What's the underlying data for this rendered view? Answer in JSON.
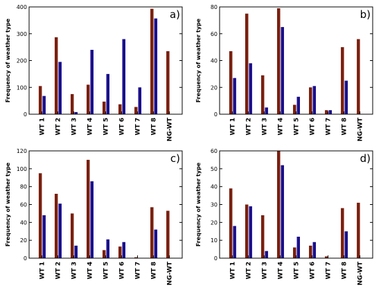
{
  "colors": {
    "series1": "#7a1f0e",
    "series2": "#1a0f8c",
    "axis": "#000000"
  },
  "chart_data": [
    {
      "type": "bar",
      "panel_label": "a)",
      "ylabel": "Frequency of weather type",
      "categories": [
        "WT 1",
        "WT 2",
        "WT 3",
        "WT 4",
        "WT 5",
        "WT 6",
        "WT 7",
        "WT 8",
        "NG-WT"
      ],
      "ylim": [
        0,
        400
      ],
      "yticks": [
        0,
        100,
        200,
        300,
        400
      ],
      "series": [
        {
          "values": [
            105,
            287,
            75,
            110,
            47,
            37,
            27,
            393,
            235
          ]
        },
        {
          "values": [
            68,
            195,
            8,
            240,
            150,
            280,
            100,
            357,
            null
          ]
        }
      ]
    },
    {
      "type": "bar",
      "panel_label": "b)",
      "ylabel": "Frequency of weather type",
      "categories": [
        "WT 1",
        "WT 2",
        "WT 3",
        "WT 4",
        "WT 5",
        "WT 6",
        "WT 7",
        "WT 8",
        "NG-WT"
      ],
      "ylim": [
        0,
        80
      ],
      "yticks": [
        0,
        20,
        40,
        60,
        80
      ],
      "series": [
        {
          "values": [
            47,
            75,
            29,
            79,
            7,
            20,
            3,
            50,
            56
          ]
        },
        {
          "values": [
            27,
            38,
            5,
            65,
            13,
            21,
            3,
            25,
            null
          ]
        }
      ]
    },
    {
      "type": "bar",
      "panel_label": "c)",
      "ylabel": "Frequency of weather type",
      "categories": [
        "WT 1",
        "WT 2",
        "WT 3",
        "WT 4",
        "WT 5",
        "WT 6",
        "WT 7",
        "WT 8",
        "NG-WT"
      ],
      "ylim": [
        0,
        120
      ],
      "yticks": [
        0,
        20,
        40,
        60,
        80,
        100,
        120
      ],
      "series": [
        {
          "values": [
            95,
            72,
            50,
            110,
            9,
            13,
            1,
            57,
            53
          ]
        },
        {
          "values": [
            48,
            61,
            14,
            86,
            21,
            18,
            0,
            32,
            null
          ]
        }
      ]
    },
    {
      "type": "bar",
      "panel_label": "d)",
      "ylabel": "Frequency of weather type",
      "categories": [
        "WT 1",
        "WT 2",
        "WT 3",
        "WT 4",
        "WT 5",
        "WT 6",
        "WT 7",
        "WT 8",
        "NG-WT"
      ],
      "ylim": [
        0,
        60
      ],
      "yticks": [
        0,
        10,
        20,
        30,
        40,
        50,
        60
      ],
      "series": [
        {
          "values": [
            39,
            30,
            24,
            60,
            6,
            7,
            1,
            28,
            31
          ]
        },
        {
          "values": [
            18,
            29,
            4,
            52,
            12,
            9,
            0,
            15,
            null
          ]
        }
      ]
    }
  ]
}
